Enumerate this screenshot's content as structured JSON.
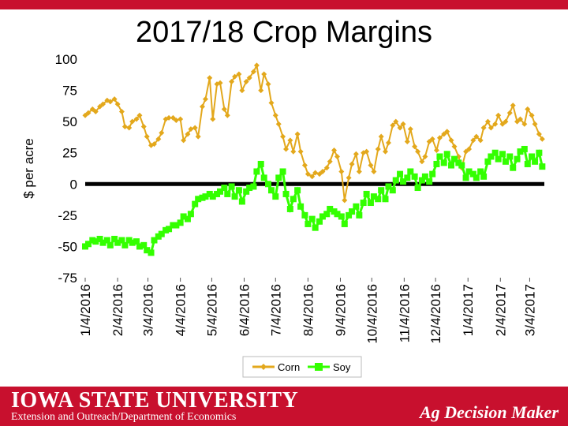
{
  "header": {
    "accent_color": "#c8102e"
  },
  "chart_data": {
    "type": "line",
    "title": "2017/18 Crop Margins",
    "ylabel": "$ per acre",
    "xlabel": "",
    "ylim": [
      -75,
      100
    ],
    "yticks": [
      100,
      75,
      50,
      25,
      0,
      -25,
      -50,
      -75
    ],
    "x_tick_labels": [
      "1/4/2016",
      "2/4/2016",
      "3/4/2016",
      "4/4/2016",
      "5/4/2016",
      "6/4/2016",
      "7/4/2016",
      "8/4/2016",
      "9/4/2016",
      "10/4/2016",
      "11/4/2016",
      "12/4/2016",
      "1/4/2017",
      "2/4/2017",
      "3/4/2017"
    ],
    "x_start": "2016-01-04",
    "x_end": "2017-03-18",
    "zero_line": true,
    "legend_position": "bottom",
    "series": [
      {
        "name": "Corn",
        "color": "#e3a81c",
        "marker": "diamond",
        "points": [
          [
            "2016-01-04",
            55
          ],
          [
            "2016-01-07",
            57
          ],
          [
            "2016-01-11",
            60
          ],
          [
            "2016-01-14",
            58
          ],
          [
            "2016-01-18",
            62
          ],
          [
            "2016-01-21",
            64
          ],
          [
            "2016-01-25",
            67
          ],
          [
            "2016-01-28",
            66
          ],
          [
            "2016-02-01",
            68
          ],
          [
            "2016-02-04",
            64
          ],
          [
            "2016-02-08",
            58
          ],
          [
            "2016-02-11",
            46
          ],
          [
            "2016-02-15",
            45
          ],
          [
            "2016-02-18",
            50
          ],
          [
            "2016-02-22",
            52
          ],
          [
            "2016-02-25",
            55
          ],
          [
            "2016-02-29",
            46
          ],
          [
            "2016-03-03",
            38
          ],
          [
            "2016-03-07",
            31
          ],
          [
            "2016-03-10",
            32
          ],
          [
            "2016-03-14",
            36
          ],
          [
            "2016-03-17",
            41
          ],
          [
            "2016-03-21",
            52
          ],
          [
            "2016-03-24",
            53
          ],
          [
            "2016-03-28",
            53
          ],
          [
            "2016-03-31",
            51
          ],
          [
            "2016-04-04",
            52
          ],
          [
            "2016-04-07",
            35
          ],
          [
            "2016-04-11",
            40
          ],
          [
            "2016-04-14",
            44
          ],
          [
            "2016-04-18",
            45
          ],
          [
            "2016-04-21",
            38
          ],
          [
            "2016-04-25",
            62
          ],
          [
            "2016-04-28",
            68
          ],
          [
            "2016-05-02",
            85
          ],
          [
            "2016-05-05",
            52
          ],
          [
            "2016-05-09",
            80
          ],
          [
            "2016-05-12",
            81
          ],
          [
            "2016-05-16",
            60
          ],
          [
            "2016-05-19",
            55
          ],
          [
            "2016-05-23",
            82
          ],
          [
            "2016-05-26",
            86
          ],
          [
            "2016-05-30",
            88
          ],
          [
            "2016-06-02",
            75
          ],
          [
            "2016-06-06",
            82
          ],
          [
            "2016-06-09",
            85
          ],
          [
            "2016-06-13",
            90
          ],
          [
            "2016-06-16",
            95
          ],
          [
            "2016-06-20",
            75
          ],
          [
            "2016-06-23",
            88
          ],
          [
            "2016-06-27",
            80
          ],
          [
            "2016-06-30",
            65
          ],
          [
            "2016-07-04",
            55
          ],
          [
            "2016-07-07",
            48
          ],
          [
            "2016-07-11",
            38
          ],
          [
            "2016-07-14",
            28
          ],
          [
            "2016-07-18",
            35
          ],
          [
            "2016-07-21",
            26
          ],
          [
            "2016-07-25",
            40
          ],
          [
            "2016-07-28",
            26
          ],
          [
            "2016-08-01",
            15
          ],
          [
            "2016-08-04",
            8
          ],
          [
            "2016-08-08",
            6
          ],
          [
            "2016-08-11",
            9
          ],
          [
            "2016-08-15",
            8
          ],
          [
            "2016-08-18",
            10
          ],
          [
            "2016-08-22",
            13
          ],
          [
            "2016-08-25",
            18
          ],
          [
            "2016-08-29",
            27
          ],
          [
            "2016-09-01",
            22
          ],
          [
            "2016-09-05",
            10
          ],
          [
            "2016-09-08",
            -13
          ],
          [
            "2016-09-12",
            5
          ],
          [
            "2016-09-15",
            16
          ],
          [
            "2016-09-19",
            24
          ],
          [
            "2016-09-22",
            10
          ],
          [
            "2016-09-26",
            25
          ],
          [
            "2016-09-29",
            26
          ],
          [
            "2016-10-03",
            15
          ],
          [
            "2016-10-06",
            10
          ],
          [
            "2016-10-10",
            28
          ],
          [
            "2016-10-13",
            38
          ],
          [
            "2016-10-17",
            26
          ],
          [
            "2016-10-20",
            33
          ],
          [
            "2016-10-24",
            47
          ],
          [
            "2016-10-27",
            50
          ],
          [
            "2016-10-31",
            45
          ],
          [
            "2016-11-03",
            48
          ],
          [
            "2016-11-07",
            34
          ],
          [
            "2016-11-10",
            44
          ],
          [
            "2016-11-14",
            30
          ],
          [
            "2016-11-17",
            26
          ],
          [
            "2016-11-21",
            18
          ],
          [
            "2016-11-24",
            22
          ],
          [
            "2016-11-28",
            34
          ],
          [
            "2016-12-01",
            36
          ],
          [
            "2016-12-05",
            27
          ],
          [
            "2016-12-08",
            37
          ],
          [
            "2016-12-12",
            40
          ],
          [
            "2016-12-15",
            42
          ],
          [
            "2016-12-19",
            35
          ],
          [
            "2016-12-22",
            30
          ],
          [
            "2016-12-26",
            22
          ],
          [
            "2016-12-29",
            13
          ],
          [
            "2017-01-02",
            26
          ],
          [
            "2017-01-05",
            28
          ],
          [
            "2017-01-09",
            35
          ],
          [
            "2017-01-12",
            38
          ],
          [
            "2017-01-16",
            35
          ],
          [
            "2017-01-19",
            45
          ],
          [
            "2017-01-23",
            50
          ],
          [
            "2017-01-26",
            45
          ],
          [
            "2017-01-30",
            48
          ],
          [
            "2017-02-02",
            55
          ],
          [
            "2017-02-06",
            48
          ],
          [
            "2017-02-09",
            50
          ],
          [
            "2017-02-13",
            57
          ],
          [
            "2017-02-16",
            63
          ],
          [
            "2017-02-20",
            50
          ],
          [
            "2017-02-23",
            52
          ],
          [
            "2017-02-27",
            48
          ],
          [
            "2017-03-02",
            60
          ],
          [
            "2017-03-06",
            55
          ],
          [
            "2017-03-09",
            48
          ],
          [
            "2017-03-13",
            40
          ],
          [
            "2017-03-16",
            36
          ]
        ]
      },
      {
        "name": "Soy",
        "color": "#33ff00",
        "marker": "square",
        "points": [
          [
            "2016-01-04",
            -50
          ],
          [
            "2016-01-07",
            -48
          ],
          [
            "2016-01-11",
            -45
          ],
          [
            "2016-01-14",
            -46
          ],
          [
            "2016-01-18",
            -44
          ],
          [
            "2016-01-21",
            -47
          ],
          [
            "2016-01-25",
            -45
          ],
          [
            "2016-01-28",
            -49
          ],
          [
            "2016-02-01",
            -44
          ],
          [
            "2016-02-04",
            -47
          ],
          [
            "2016-02-08",
            -45
          ],
          [
            "2016-02-11",
            -49
          ],
          [
            "2016-02-15",
            -45
          ],
          [
            "2016-02-18",
            -47
          ],
          [
            "2016-02-22",
            -46
          ],
          [
            "2016-02-25",
            -50
          ],
          [
            "2016-02-29",
            -49
          ],
          [
            "2016-03-03",
            -53
          ],
          [
            "2016-03-07",
            -55
          ],
          [
            "2016-03-10",
            -45
          ],
          [
            "2016-03-14",
            -42
          ],
          [
            "2016-03-17",
            -40
          ],
          [
            "2016-03-21",
            -37
          ],
          [
            "2016-03-24",
            -36
          ],
          [
            "2016-03-28",
            -33
          ],
          [
            "2016-03-31",
            -33
          ],
          [
            "2016-04-04",
            -31
          ],
          [
            "2016-04-07",
            -26
          ],
          [
            "2016-04-11",
            -28
          ],
          [
            "2016-04-14",
            -24
          ],
          [
            "2016-04-18",
            -16
          ],
          [
            "2016-04-21",
            -12
          ],
          [
            "2016-04-25",
            -11
          ],
          [
            "2016-04-28",
            -10
          ],
          [
            "2016-05-02",
            -8
          ],
          [
            "2016-05-05",
            -10
          ],
          [
            "2016-05-09",
            -8
          ],
          [
            "2016-05-12",
            -6
          ],
          [
            "2016-05-16",
            -3
          ],
          [
            "2016-05-19",
            -8
          ],
          [
            "2016-05-23",
            -2
          ],
          [
            "2016-05-26",
            -10
          ],
          [
            "2016-05-30",
            -5
          ],
          [
            "2016-06-02",
            -14
          ],
          [
            "2016-06-06",
            -6
          ],
          [
            "2016-06-09",
            -3
          ],
          [
            "2016-06-13",
            -2
          ],
          [
            "2016-06-16",
            10
          ],
          [
            "2016-06-20",
            16
          ],
          [
            "2016-06-23",
            5
          ],
          [
            "2016-06-27",
            0
          ],
          [
            "2016-06-30",
            -5
          ],
          [
            "2016-07-04",
            -10
          ],
          [
            "2016-07-07",
            5
          ],
          [
            "2016-07-11",
            10
          ],
          [
            "2016-07-14",
            -8
          ],
          [
            "2016-07-18",
            -20
          ],
          [
            "2016-07-21",
            -12
          ],
          [
            "2016-07-25",
            -5
          ],
          [
            "2016-07-28",
            -18
          ],
          [
            "2016-08-01",
            -25
          ],
          [
            "2016-08-04",
            -32
          ],
          [
            "2016-08-08",
            -28
          ],
          [
            "2016-08-11",
            -35
          ],
          [
            "2016-08-15",
            -30
          ],
          [
            "2016-08-18",
            -26
          ],
          [
            "2016-08-22",
            -24
          ],
          [
            "2016-08-25",
            -20
          ],
          [
            "2016-08-29",
            -22
          ],
          [
            "2016-09-01",
            -24
          ],
          [
            "2016-09-05",
            -26
          ],
          [
            "2016-09-08",
            -32
          ],
          [
            "2016-09-12",
            -25
          ],
          [
            "2016-09-15",
            -22
          ],
          [
            "2016-09-19",
            -18
          ],
          [
            "2016-09-22",
            -25
          ],
          [
            "2016-09-26",
            -15
          ],
          [
            "2016-09-29",
            -8
          ],
          [
            "2016-10-03",
            -15
          ],
          [
            "2016-10-06",
            -10
          ],
          [
            "2016-10-10",
            -12
          ],
          [
            "2016-10-13",
            -5
          ],
          [
            "2016-10-17",
            -12
          ],
          [
            "2016-10-20",
            -2
          ],
          [
            "2016-10-24",
            -5
          ],
          [
            "2016-10-27",
            3
          ],
          [
            "2016-10-31",
            8
          ],
          [
            "2016-11-03",
            2
          ],
          [
            "2016-11-07",
            5
          ],
          [
            "2016-11-10",
            10
          ],
          [
            "2016-11-14",
            6
          ],
          [
            "2016-11-17",
            -3
          ],
          [
            "2016-11-21",
            3
          ],
          [
            "2016-11-24",
            6
          ],
          [
            "2016-11-28",
            2
          ],
          [
            "2016-12-01",
            8
          ],
          [
            "2016-12-05",
            16
          ],
          [
            "2016-12-08",
            22
          ],
          [
            "2016-12-12",
            17
          ],
          [
            "2016-12-15",
            24
          ],
          [
            "2016-12-19",
            15
          ],
          [
            "2016-12-22",
            20
          ],
          [
            "2016-12-26",
            17
          ],
          [
            "2016-12-29",
            15
          ],
          [
            "2017-01-02",
            5
          ],
          [
            "2017-01-05",
            10
          ],
          [
            "2017-01-09",
            8
          ],
          [
            "2017-01-12",
            5
          ],
          [
            "2017-01-16",
            10
          ],
          [
            "2017-01-19",
            6
          ],
          [
            "2017-01-23",
            18
          ],
          [
            "2017-01-26",
            22
          ],
          [
            "2017-01-30",
            25
          ],
          [
            "2017-02-02",
            20
          ],
          [
            "2017-02-06",
            24
          ],
          [
            "2017-02-09",
            18
          ],
          [
            "2017-02-13",
            22
          ],
          [
            "2017-02-16",
            13
          ],
          [
            "2017-02-20",
            20
          ],
          [
            "2017-02-23",
            26
          ],
          [
            "2017-02-27",
            28
          ],
          [
            "2017-03-02",
            16
          ],
          [
            "2017-03-06",
            22
          ],
          [
            "2017-03-09",
            18
          ],
          [
            "2017-03-13",
            25
          ],
          [
            "2017-03-16",
            14
          ]
        ]
      }
    ]
  },
  "footer": {
    "university": "IOWA STATE UNIVERSITY",
    "department": "Extension and Outreach/Department of Economics",
    "program": "Ag Decision Maker",
    "background": "#c8102e"
  }
}
